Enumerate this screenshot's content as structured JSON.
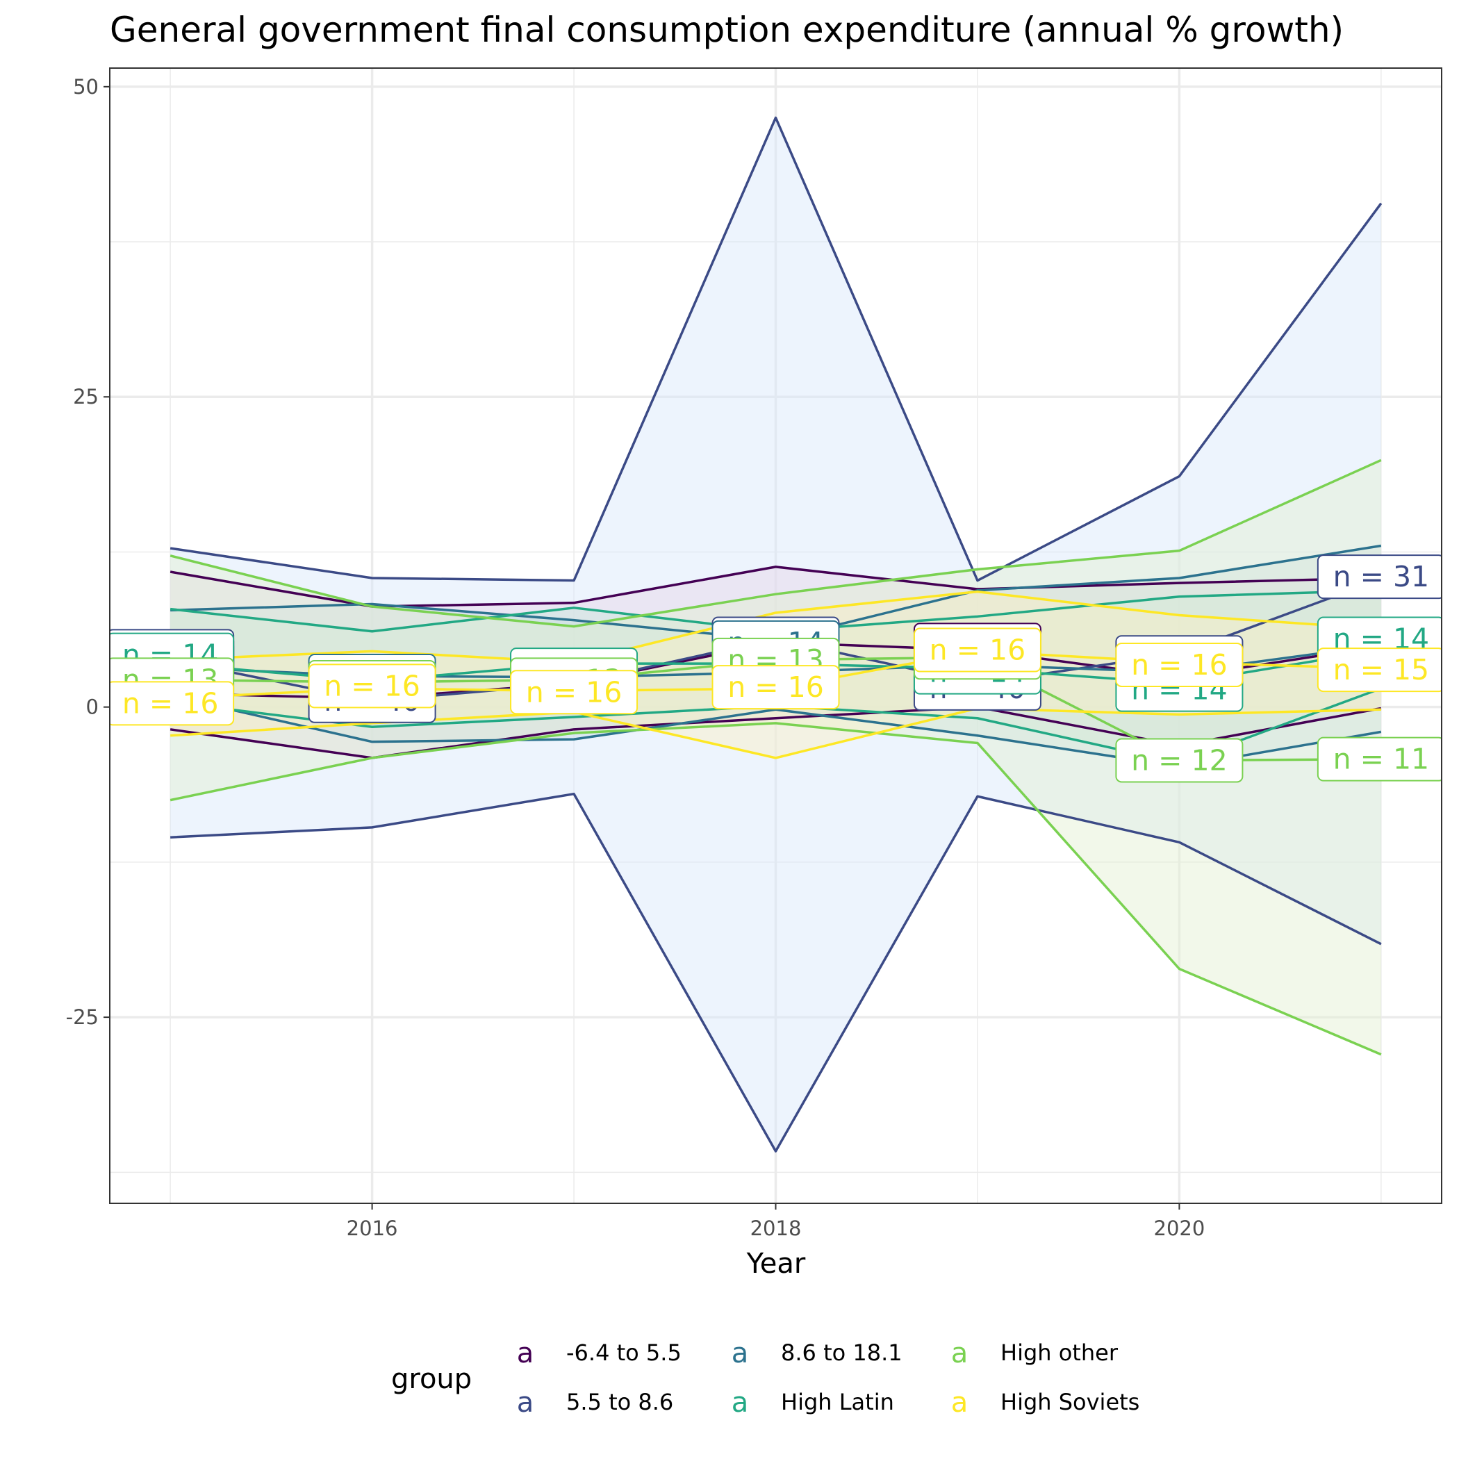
{
  "chart_data": {
    "type": "line",
    "title": "General government final consumption expenditure (annual % growth)",
    "xlabel": "Year",
    "ylabel": "",
    "x": [
      2015,
      2016,
      2017,
      2018,
      2019,
      2020,
      2021
    ],
    "xlim": [
      2014.7,
      2021.3
    ],
    "ylim": [
      -40,
      51.5
    ],
    "x_ticks": [
      2016,
      2018,
      2020
    ],
    "x_tick_labels": [
      "2016",
      "2018",
      "2020"
    ],
    "y_ticks": [
      -25,
      0,
      25,
      50
    ],
    "y_tick_labels": [
      "-25",
      "0",
      "25",
      "50"
    ],
    "grid": true,
    "legend": {
      "title": "group",
      "position": "bottom",
      "key_glyph": "a"
    },
    "series": [
      {
        "name": "-6.4 to 5.5",
        "color": "#440154",
        "fill": "#f5c6d6",
        "upper": [
          10.9,
          8.1,
          8.4,
          11.3,
          9.5,
          10.0,
          10.4
        ],
        "median": [
          1.1,
          0.7,
          1.9,
          5.2,
          4.6,
          2.4,
          4.9
        ],
        "lower": [
          -1.8,
          -4.1,
          -1.8,
          -0.9,
          0.0,
          -3.1,
          -0.1
        ],
        "n_labels": [
          {
            "x": 2015,
            "y": 4.0,
            "text": "n = 16"
          },
          {
            "x": 2019,
            "y": 5.0,
            "text": "n = 16"
          }
        ]
      },
      {
        "name": "5.5 to 8.6",
        "color": "#3b4a86",
        "fill": "#d6e6fb",
        "upper": [
          12.8,
          10.4,
          10.2,
          47.5,
          10.2,
          18.6,
          40.6
        ],
        "median": [
          3.8,
          0.5,
          1.9,
          5.5,
          1.9,
          4.3,
          10.3
        ],
        "lower": [
          -10.5,
          -9.7,
          -7.0,
          -35.8,
          -7.2,
          -10.9,
          -19.1
        ],
        "n_labels": [
          {
            "x": 2015,
            "y": 4.5,
            "text": "n = 40"
          },
          {
            "x": 2016,
            "y": 0.5,
            "text": "n = 40"
          },
          {
            "x": 2018,
            "y": 5.5,
            "text": "n = 40"
          },
          {
            "x": 2019,
            "y": 1.5,
            "text": "n = 40"
          },
          {
            "x": 2020,
            "y": 4.0,
            "text": "n = 40"
          },
          {
            "x": 2021,
            "y": 10.5,
            "text": "n = 31"
          }
        ]
      },
      {
        "name": "8.6 to 18.1",
        "color": "#2c728e",
        "fill": "#c8dce6",
        "upper": [
          7.8,
          8.3,
          7.0,
          5.4,
          9.4,
          10.4,
          13.0
        ],
        "median": [
          3.2,
          2.5,
          2.4,
          2.8,
          3.4,
          2.8,
          5.0
        ],
        "lower": [
          0.9,
          -2.8,
          -2.6,
          -0.2,
          -2.3,
          -4.8,
          -2.0
        ],
        "n_labels": [
          {
            "x": 2015,
            "y": 3.6,
            "text": "n = 14"
          },
          {
            "x": 2016,
            "y": 2.5,
            "text": "n = 14"
          },
          {
            "x": 2018,
            "y": 5.2,
            "text": "n = 14"
          },
          {
            "x": 2019,
            "y": 3.6,
            "text": "n = 14"
          }
        ]
      },
      {
        "name": "High Latin",
        "color": "#22a884",
        "fill": "#c9e7dc",
        "upper": [
          7.9,
          6.1,
          8.0,
          6.1,
          7.3,
          8.9,
          9.4
        ],
        "median": [
          3.5,
          2.1,
          3.5,
          3.5,
          3.1,
          1.9,
          4.6
        ],
        "lower": [
          0.4,
          -1.6,
          -0.8,
          0.1,
          -0.9,
          -4.5,
          1.5
        ],
        "n_labels": [
          {
            "x": 2015,
            "y": 4.2,
            "text": "n = 14"
          },
          {
            "x": 2017,
            "y": 3.0,
            "text": "n = 14"
          },
          {
            "x": 2018,
            "y": 3.3,
            "text": "n = 14"
          },
          {
            "x": 2019,
            "y": 2.8,
            "text": "n = 14"
          },
          {
            "x": 2020,
            "y": 1.4,
            "text": "n = 14"
          },
          {
            "x": 2021,
            "y": 5.5,
            "text": "n = 14"
          }
        ]
      },
      {
        "name": "High other",
        "color": "#7ad151",
        "fill": "#e3efd0",
        "upper": [
          12.2,
          8.1,
          6.5,
          9.1,
          11.1,
          12.6,
          19.9
        ],
        "median": [
          2.2,
          2.0,
          2.2,
          3.8,
          4.0,
          -4.3,
          -4.2
        ],
        "lower": [
          -7.5,
          -4.1,
          -2.1,
          -1.3,
          -2.9,
          -21.1,
          -28.0
        ],
        "n_labels": [
          {
            "x": 2015,
            "y": 2.2,
            "text": "n = 13"
          },
          {
            "x": 2016,
            "y": 2.0,
            "text": "n = 13"
          },
          {
            "x": 2017,
            "y": 2.2,
            "text": "n = 13"
          },
          {
            "x": 2018,
            "y": 3.8,
            "text": "n = 13"
          },
          {
            "x": 2019,
            "y": 4.0,
            "text": "n = 13"
          },
          {
            "x": 2020,
            "y": -4.3,
            "text": "n = 12"
          },
          {
            "x": 2021,
            "y": -4.2,
            "text": "n = 11"
          }
        ]
      },
      {
        "name": "High Soviets",
        "color": "#fde725",
        "fill": "#fbf0c4",
        "upper": [
          3.8,
          4.5,
          3.6,
          7.6,
          9.3,
          7.4,
          6.3
        ],
        "median": [
          0.7,
          1.5,
          1.3,
          1.5,
          4.5,
          3.6,
          3.1
        ],
        "lower": [
          -2.3,
          -1.3,
          -0.4,
          -4.1,
          -0.1,
          -0.6,
          -0.2
        ],
        "n_labels": [
          {
            "x": 2015,
            "y": 0.3,
            "text": "n = 16"
          },
          {
            "x": 2016,
            "y": 1.7,
            "text": "n = 16"
          },
          {
            "x": 2017,
            "y": 1.2,
            "text": "n = 16"
          },
          {
            "x": 2018,
            "y": 1.6,
            "text": "n = 16"
          },
          {
            "x": 2019,
            "y": 4.6,
            "text": "n = 16"
          },
          {
            "x": 2020,
            "y": 3.4,
            "text": "n = 16"
          },
          {
            "x": 2021,
            "y": 3.0,
            "text": "n = 15"
          }
        ]
      }
    ]
  }
}
